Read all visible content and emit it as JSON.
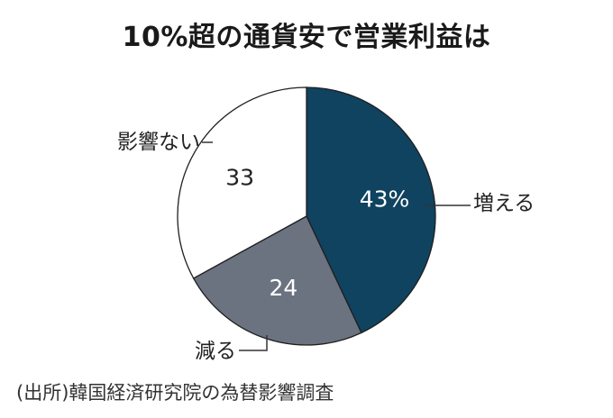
{
  "chart_data": {
    "type": "pie",
    "title": "10%超の通貨安で営業利益は",
    "slices": [
      {
        "label": "増える",
        "value": 43,
        "value_label": "43%",
        "color": "#0f435f",
        "text_color": "#ffffff"
      },
      {
        "label": "減る",
        "value": 24,
        "value_label": "24",
        "color": "#6b7280",
        "text_color": "#ffffff"
      },
      {
        "label": "影響ない",
        "value": 33,
        "value_label": "33",
        "color": "#ffffff",
        "text_color": "#222222"
      }
    ],
    "start": "12 o'clock",
    "direction": "clockwise"
  },
  "source": "(出所)韓国経済研究院の為替影響調査"
}
